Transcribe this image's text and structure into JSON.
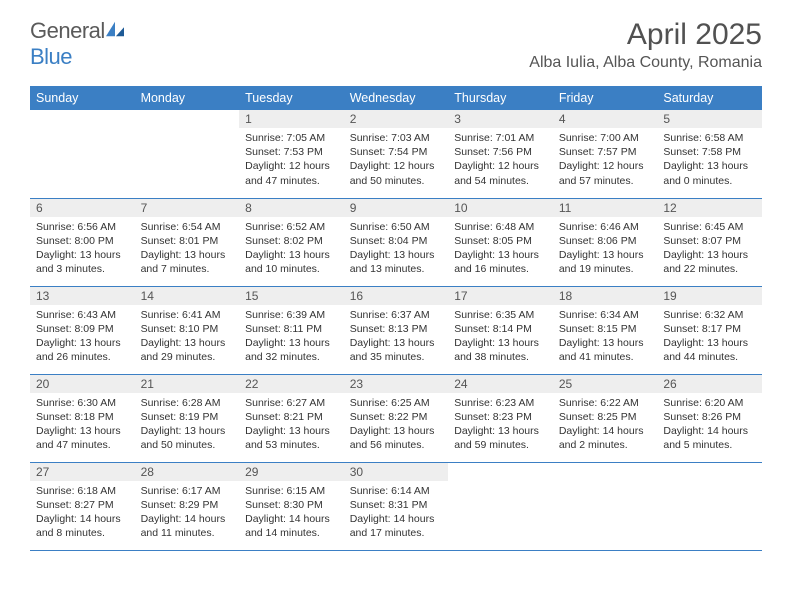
{
  "logo": {
    "text1": "General",
    "text2": "Blue"
  },
  "title": "April 2025",
  "location": "Alba Iulia, Alba County, Romania",
  "colors": {
    "header_bg": "#3b7fc4",
    "header_text": "#ffffff",
    "dayhead_bg": "#eeeeee",
    "row_border": "#3b7fc4",
    "body_text": "#333333",
    "title_text": "#515151"
  },
  "font": {
    "family": "Arial",
    "title_size": 30,
    "header_size": 12.5,
    "body_size": 10.5
  },
  "weekdays": [
    "Sunday",
    "Monday",
    "Tuesday",
    "Wednesday",
    "Thursday",
    "Friday",
    "Saturday"
  ],
  "weeks": [
    [
      null,
      null,
      {
        "n": "1",
        "sunrise": "7:05 AM",
        "sunset": "7:53 PM",
        "daylight": "12 hours and 47 minutes."
      },
      {
        "n": "2",
        "sunrise": "7:03 AM",
        "sunset": "7:54 PM",
        "daylight": "12 hours and 50 minutes."
      },
      {
        "n": "3",
        "sunrise": "7:01 AM",
        "sunset": "7:56 PM",
        "daylight": "12 hours and 54 minutes."
      },
      {
        "n": "4",
        "sunrise": "7:00 AM",
        "sunset": "7:57 PM",
        "daylight": "12 hours and 57 minutes."
      },
      {
        "n": "5",
        "sunrise": "6:58 AM",
        "sunset": "7:58 PM",
        "daylight": "13 hours and 0 minutes."
      }
    ],
    [
      {
        "n": "6",
        "sunrise": "6:56 AM",
        "sunset": "8:00 PM",
        "daylight": "13 hours and 3 minutes."
      },
      {
        "n": "7",
        "sunrise": "6:54 AM",
        "sunset": "8:01 PM",
        "daylight": "13 hours and 7 minutes."
      },
      {
        "n": "8",
        "sunrise": "6:52 AM",
        "sunset": "8:02 PM",
        "daylight": "13 hours and 10 minutes."
      },
      {
        "n": "9",
        "sunrise": "6:50 AM",
        "sunset": "8:04 PM",
        "daylight": "13 hours and 13 minutes."
      },
      {
        "n": "10",
        "sunrise": "6:48 AM",
        "sunset": "8:05 PM",
        "daylight": "13 hours and 16 minutes."
      },
      {
        "n": "11",
        "sunrise": "6:46 AM",
        "sunset": "8:06 PM",
        "daylight": "13 hours and 19 minutes."
      },
      {
        "n": "12",
        "sunrise": "6:45 AM",
        "sunset": "8:07 PM",
        "daylight": "13 hours and 22 minutes."
      }
    ],
    [
      {
        "n": "13",
        "sunrise": "6:43 AM",
        "sunset": "8:09 PM",
        "daylight": "13 hours and 26 minutes."
      },
      {
        "n": "14",
        "sunrise": "6:41 AM",
        "sunset": "8:10 PM",
        "daylight": "13 hours and 29 minutes."
      },
      {
        "n": "15",
        "sunrise": "6:39 AM",
        "sunset": "8:11 PM",
        "daylight": "13 hours and 32 minutes."
      },
      {
        "n": "16",
        "sunrise": "6:37 AM",
        "sunset": "8:13 PM",
        "daylight": "13 hours and 35 minutes."
      },
      {
        "n": "17",
        "sunrise": "6:35 AM",
        "sunset": "8:14 PM",
        "daylight": "13 hours and 38 minutes."
      },
      {
        "n": "18",
        "sunrise": "6:34 AM",
        "sunset": "8:15 PM",
        "daylight": "13 hours and 41 minutes."
      },
      {
        "n": "19",
        "sunrise": "6:32 AM",
        "sunset": "8:17 PM",
        "daylight": "13 hours and 44 minutes."
      }
    ],
    [
      {
        "n": "20",
        "sunrise": "6:30 AM",
        "sunset": "8:18 PM",
        "daylight": "13 hours and 47 minutes."
      },
      {
        "n": "21",
        "sunrise": "6:28 AM",
        "sunset": "8:19 PM",
        "daylight": "13 hours and 50 minutes."
      },
      {
        "n": "22",
        "sunrise": "6:27 AM",
        "sunset": "8:21 PM",
        "daylight": "13 hours and 53 minutes."
      },
      {
        "n": "23",
        "sunrise": "6:25 AM",
        "sunset": "8:22 PM",
        "daylight": "13 hours and 56 minutes."
      },
      {
        "n": "24",
        "sunrise": "6:23 AM",
        "sunset": "8:23 PM",
        "daylight": "13 hours and 59 minutes."
      },
      {
        "n": "25",
        "sunrise": "6:22 AM",
        "sunset": "8:25 PM",
        "daylight": "14 hours and 2 minutes."
      },
      {
        "n": "26",
        "sunrise": "6:20 AM",
        "sunset": "8:26 PM",
        "daylight": "14 hours and 5 minutes."
      }
    ],
    [
      {
        "n": "27",
        "sunrise": "6:18 AM",
        "sunset": "8:27 PM",
        "daylight": "14 hours and 8 minutes."
      },
      {
        "n": "28",
        "sunrise": "6:17 AM",
        "sunset": "8:29 PM",
        "daylight": "14 hours and 11 minutes."
      },
      {
        "n": "29",
        "sunrise": "6:15 AM",
        "sunset": "8:30 PM",
        "daylight": "14 hours and 14 minutes."
      },
      {
        "n": "30",
        "sunrise": "6:14 AM",
        "sunset": "8:31 PM",
        "daylight": "14 hours and 17 minutes."
      },
      null,
      null,
      null
    ]
  ],
  "labels": {
    "sunrise": "Sunrise: ",
    "sunset": "Sunset: ",
    "daylight": "Daylight: "
  }
}
